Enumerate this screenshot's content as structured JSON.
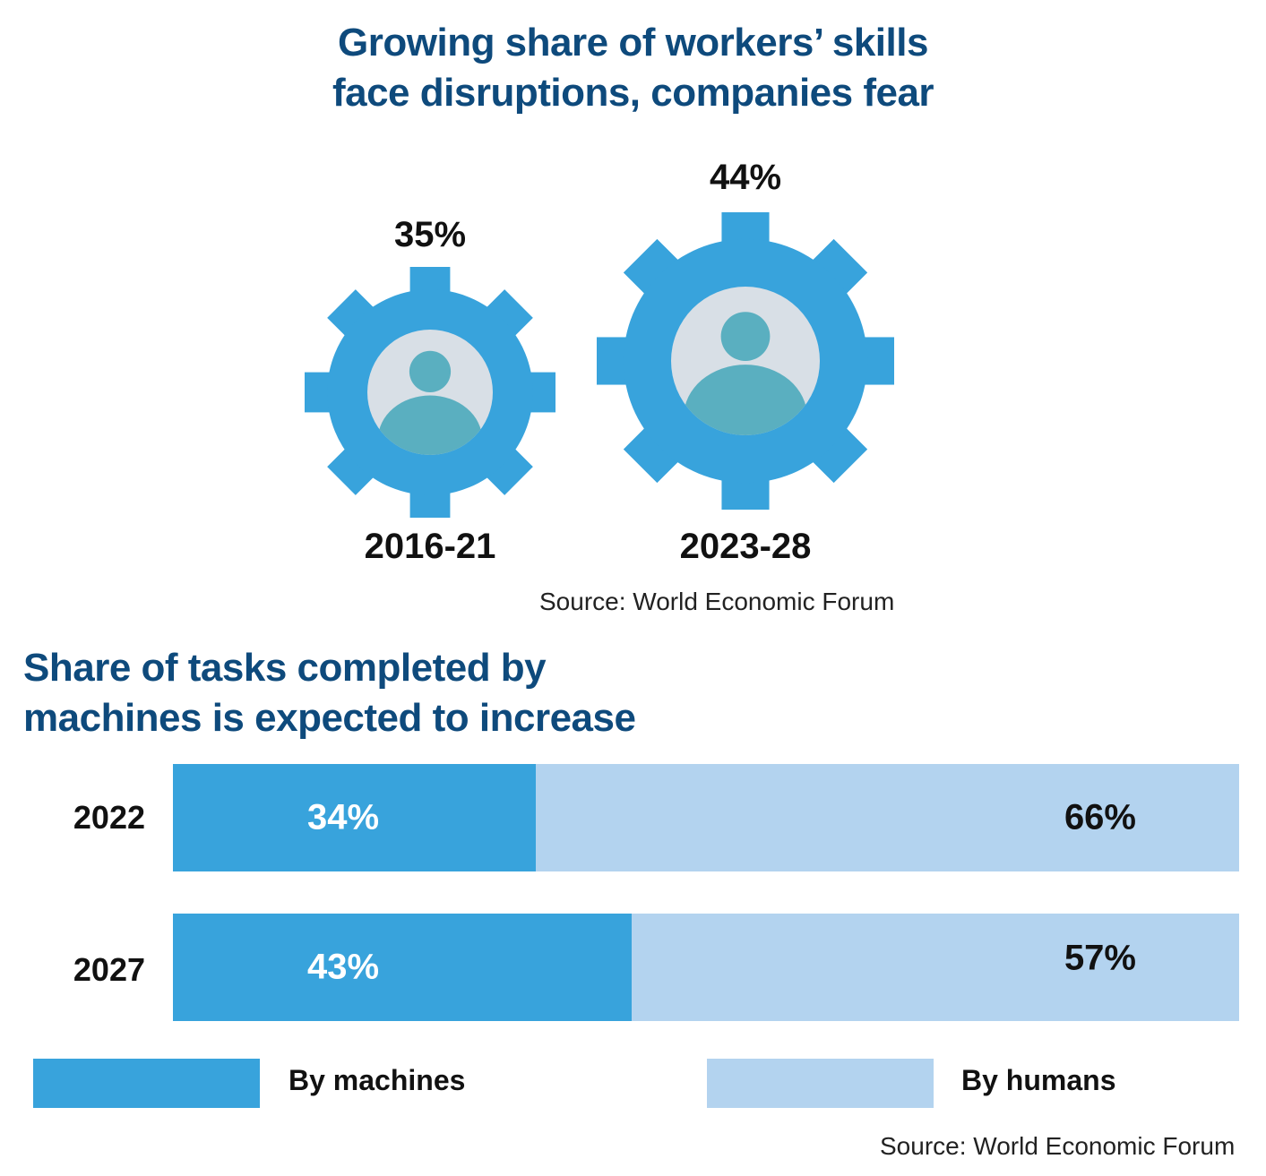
{
  "colors": {
    "title": "#0e4a7c",
    "gear": "#38a3dc",
    "gear_inner": "#d8dfe6",
    "person": "#5aafc0",
    "machines": "#38a3dc",
    "humans": "#b3d3ef"
  },
  "section1": {
    "title_line1": "Growing share of workers’ skills",
    "title_line2": "face disruptions, companies fear",
    "source": "Source: World Economic Forum",
    "icon": "gear-person-icon"
  },
  "section2": {
    "title_line1": "Share of tasks completed by",
    "title_line2": "machines is expected to increase",
    "source": "Source: World Economic Forum",
    "legend": {
      "machines": "By machines",
      "humans": "By humans"
    }
  },
  "chart_data": [
    {
      "type": "bar",
      "title": "Growing share of workers’ skills face disruptions, companies fear",
      "categories": [
        "2016-21",
        "2023-28"
      ],
      "values": [
        35,
        44
      ],
      "value_labels": [
        "35%",
        "44%"
      ],
      "unit": "%"
    },
    {
      "type": "bar",
      "stacked": true,
      "orientation": "horizontal",
      "title": "Share of tasks completed by machines is expected to increase",
      "categories": [
        "2022",
        "2027"
      ],
      "series": [
        {
          "name": "By machines",
          "values": [
            34,
            43
          ],
          "labels": [
            "34%",
            "43%"
          ]
        },
        {
          "name": "By humans",
          "values": [
            66,
            57
          ],
          "labels": [
            "66%",
            "57%"
          ]
        }
      ],
      "xlim": [
        0,
        100
      ],
      "legend_position": "bottom"
    }
  ]
}
